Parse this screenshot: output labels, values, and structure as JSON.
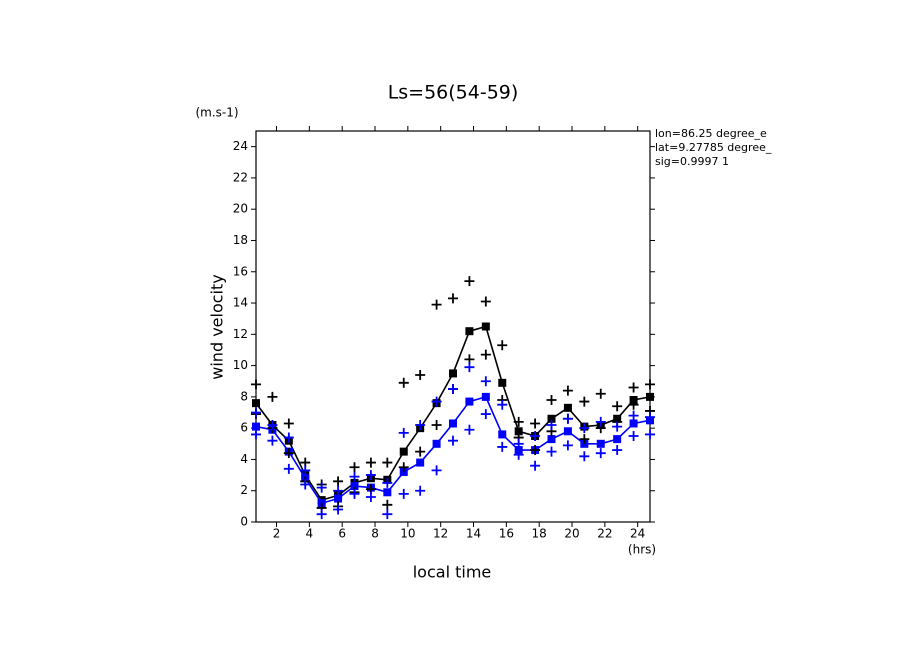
{
  "chart_data": {
    "type": "line",
    "title": "Ls=56(54-59)",
    "y_unit": "(m.s-1)",
    "ylabel": "wind velocity",
    "xlabel": "local time",
    "x_unit": "(hrs)",
    "annotations": [
      "lon=86.25 degree_e",
      "lat=9.27785 degree_",
      "sig=0.9997 1"
    ],
    "x": [
      0.75,
      1.75,
      2.75,
      3.75,
      4.75,
      5.75,
      6.75,
      7.75,
      8.75,
      9.75,
      10.75,
      11.75,
      12.75,
      13.75,
      14.75,
      15.75,
      16.75,
      17.75,
      18.75,
      19.75,
      20.75,
      21.75,
      22.75,
      23.75,
      24.75
    ],
    "xlim": [
      0.75,
      24.75
    ],
    "xticks": [
      2,
      4,
      6,
      8,
      10,
      12,
      14,
      16,
      18,
      20,
      22,
      24
    ],
    "ylim": [
      0,
      25
    ],
    "yticks": [
      0,
      2,
      4,
      6,
      8,
      10,
      12,
      14,
      16,
      18,
      20,
      22,
      24
    ],
    "series": [
      {
        "style": "line",
        "color": "#000000",
        "values": [
          7.6,
          6.2,
          5.2,
          3.0,
          1.4,
          1.7,
          2.5,
          2.8,
          2.7,
          4.5,
          6.0,
          7.6,
          9.5,
          12.2,
          12.5,
          8.9,
          5.8,
          5.5,
          6.6,
          7.3,
          6.1,
          6.2,
          6.6,
          7.8,
          8.0
        ]
      },
      {
        "style": "line",
        "color": "#0000ff",
        "values": [
          6.1,
          5.9,
          4.5,
          2.8,
          1.2,
          1.5,
          2.3,
          2.2,
          1.9,
          3.2,
          3.8,
          5.0,
          6.3,
          7.7,
          8.0,
          5.6,
          4.6,
          4.6,
          5.3,
          5.8,
          5.0,
          5.0,
          5.3,
          6.3,
          6.5
        ]
      },
      {
        "style": "markers",
        "color": "#000000",
        "values": [
          8.8,
          8.0,
          6.3,
          3.8,
          2.4,
          2.6,
          3.5,
          3.8,
          3.8,
          8.9,
          9.4,
          13.9,
          14.3,
          15.4,
          14.1,
          11.3,
          6.4,
          6.3,
          7.8,
          8.4,
          7.7,
          8.2,
          7.4,
          8.6,
          8.8
        ]
      },
      {
        "style": "markers",
        "color": "#000000",
        "values": [
          6.9,
          6.0,
          4.4,
          2.6,
          0.9,
          1.0,
          1.9,
          2.1,
          1.1,
          3.5,
          4.5,
          6.2,
          8.5,
          10.4,
          10.7,
          7.8,
          5.4,
          4.6,
          5.8,
          6.6,
          5.3,
          6.0,
          6.4,
          7.5,
          7.1
        ]
      },
      {
        "style": "markers",
        "color": "#0000ff",
        "values": [
          7.0,
          6.2,
          5.4,
          3.3,
          2.2,
          2.0,
          2.9,
          3.0,
          2.5,
          5.7,
          6.2,
          7.7,
          8.5,
          9.9,
          9.0,
          7.5,
          5.0,
          5.5,
          6.2,
          6.6,
          6.0,
          6.4,
          6.1,
          6.8,
          6.7
        ]
      },
      {
        "style": "markers",
        "color": "#0000ff",
        "values": [
          5.6,
          5.2,
          3.4,
          2.4,
          0.5,
          0.8,
          1.8,
          1.6,
          0.5,
          1.8,
          2.0,
          3.3,
          5.2,
          5.9,
          6.9,
          4.8,
          4.3,
          3.6,
          4.5,
          4.9,
          4.2,
          4.4,
          4.6,
          5.5,
          5.6
        ]
      }
    ]
  }
}
